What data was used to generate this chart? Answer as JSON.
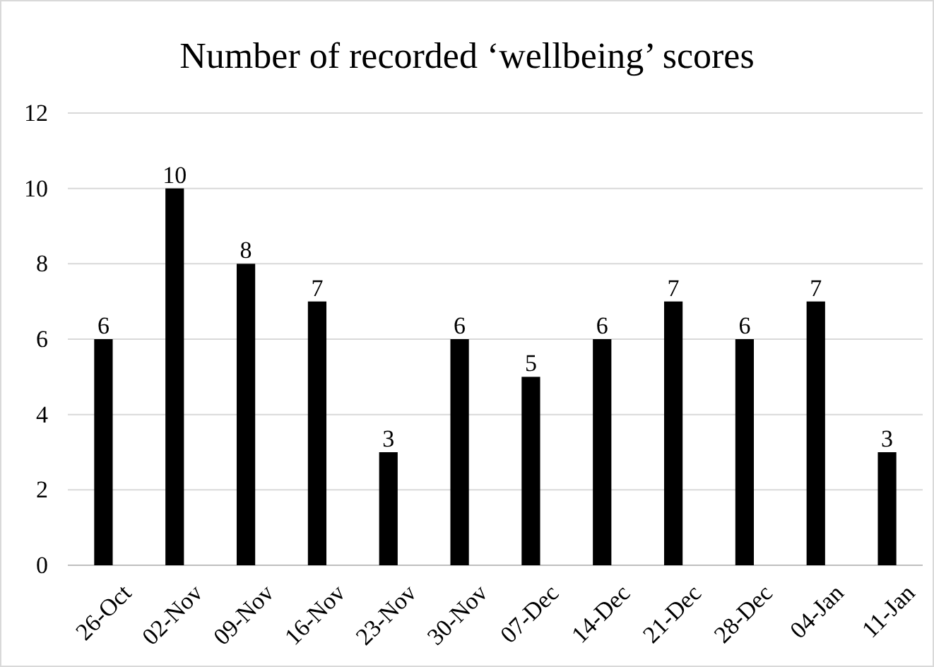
{
  "chart_data": {
    "type": "bar",
    "title": "Number of recorded ‘wellbeing’ scores",
    "categories": [
      "26-Oct",
      "02-Nov",
      "09-Nov",
      "16-Nov",
      "23-Nov",
      "30-Nov",
      "07-Dec",
      "14-Dec",
      "21-Dec",
      "28-Dec",
      "04-Jan",
      "11-Jan"
    ],
    "values": [
      6,
      10,
      8,
      7,
      3,
      6,
      5,
      6,
      7,
      6,
      7,
      3
    ],
    "color": "#000000",
    "ylim": [
      0,
      12
    ],
    "yticks": [
      0,
      2,
      4,
      6,
      8,
      10,
      12
    ],
    "grid": "y",
    "data_labels": true
  }
}
